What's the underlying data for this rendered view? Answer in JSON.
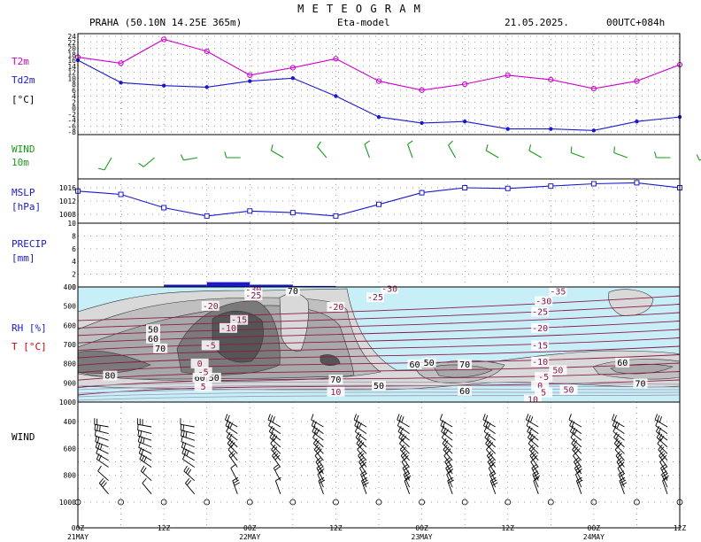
{
  "header": {
    "title": "M E T E O G R A M",
    "location": "PRAHA (50.10N 14.25E  365m)",
    "model": "Eta-model",
    "date": "21.05.2025.",
    "run": "00UTC+084h"
  },
  "colors": {
    "t2m": "#cc00cc",
    "td2m": "#1a1acc",
    "wind10m": "#1a9a1a",
    "mslp": "#1a1acc",
    "precip": "#1a1acc",
    "rh_light": "#c8eef8",
    "rh_50": "#d9d9d9",
    "rh_60": "#c0c0c0",
    "rh_70": "#a8a8a8",
    "rh_80": "#7a7a7a",
    "rh_90": "#555555",
    "temp_contour": "#8a1a4a"
  },
  "labels": {
    "t2m": "T2m",
    "td2m": "Td2m",
    "tunit": "[°C]",
    "wind10_1": "WIND",
    "wind10_2": "10m",
    "mslp_1": "MSLP",
    "mslp_2": "[hPa]",
    "precip_1": "PRECIP",
    "precip_2": "[mm]",
    "rh_1": "RH [%]",
    "rh_2": "T [°C]",
    "wind_profile": "WIND"
  },
  "axes": {
    "time_ticks": [
      "00Z",
      "12Z",
      "00Z",
      "12Z",
      "00Z",
      "12Z",
      "00Z",
      "12Z"
    ],
    "dates": [
      "21MAY",
      "22MAY",
      "23MAY",
      "24MAY"
    ],
    "temp_ticks": [
      "24",
      "22",
      "20",
      "18",
      "16",
      "14",
      "12",
      "10",
      "8",
      "6",
      "4",
      "2",
      "0",
      "-2",
      "-4",
      "-6",
      "-8"
    ],
    "mslp_ticks": [
      "1016",
      "1012",
      "1008"
    ],
    "precip_ticks": [
      "10",
      "8",
      "6",
      "4",
      "2",
      "0"
    ],
    "pressure_ticks": [
      "400",
      "500",
      "600",
      "700",
      "800",
      "900",
      "1000"
    ],
    "profile_ticks": [
      "400",
      "600",
      "800",
      "1000"
    ]
  },
  "chart_data": [
    {
      "type": "line",
      "panel": "temperature",
      "x_hours": [
        0,
        6,
        12,
        18,
        24,
        30,
        36,
        42,
        48,
        54,
        60,
        66,
        72,
        78,
        84
      ],
      "ylim": [
        -8,
        24
      ],
      "series": [
        {
          "name": "T2m",
          "values": [
            17,
            15,
            23,
            19,
            11,
            13.5,
            16.5,
            9,
            6,
            8,
            11,
            9.5,
            6.5,
            9,
            14.5
          ]
        },
        {
          "name": "Td2m",
          "values": [
            16,
            8.5,
            7.5,
            7,
            9,
            10,
            4,
            -3,
            -5,
            -4.5,
            -7,
            -7,
            -7.5,
            -4.5,
            -3
          ]
        }
      ]
    },
    {
      "type": "line",
      "panel": "mslp",
      "x_hours": [
        0,
        6,
        12,
        18,
        24,
        30,
        36,
        42,
        48,
        54,
        60,
        66,
        72,
        78,
        84
      ],
      "ylim": [
        1004,
        1018
      ],
      "series": [
        {
          "name": "MSLP",
          "values": [
            1015,
            1014,
            1010,
            1007.5,
            1009,
            1008.5,
            1007.5,
            1011,
            1014.5,
            1016,
            1015.8,
            1016.5,
            1017.2,
            1017.5,
            1016
          ]
        }
      ]
    },
    {
      "type": "bar",
      "panel": "precip",
      "ylim": [
        0,
        10
      ],
      "x_hours": [
        15,
        21,
        27,
        33
      ],
      "values": [
        0.35,
        0.75,
        0.35,
        0.15
      ]
    },
    {
      "type": "heatmap",
      "panel": "rh_temperature_cross_section",
      "ylim_hpa": [
        1000,
        400
      ],
      "rh_labels": [
        {
          "text": "70",
          "hour": 30,
          "hpa": 438
        },
        {
          "text": "50",
          "hour": 10.5,
          "hpa": 637
        },
        {
          "text": "60",
          "hour": 10.5,
          "hpa": 685
        },
        {
          "text": "70",
          "hour": 11.5,
          "hpa": 736
        },
        {
          "text": "80",
          "hour": 4.5,
          "hpa": 878
        },
        {
          "text": "60",
          "hour": 17,
          "hpa": 889
        },
        {
          "text": "50",
          "hour": 19,
          "hpa": 889
        },
        {
          "text": "70",
          "hour": 36,
          "hpa": 899
        },
        {
          "text": "50",
          "hour": 42,
          "hpa": 931
        },
        {
          "text": "60",
          "hour": 47,
          "hpa": 819
        },
        {
          "text": "50",
          "hour": 49,
          "hpa": 810
        },
        {
          "text": "70",
          "hour": 54,
          "hpa": 819
        },
        {
          "text": "60",
          "hour": 54,
          "hpa": 958
        },
        {
          "text": "60",
          "hour": 76,
          "hpa": 810
        },
        {
          "text": "70",
          "hour": 78.5,
          "hpa": 919
        }
      ],
      "temp_labels": [
        {
          "text": "-30",
          "hour": 24.5,
          "hpa": 430
        },
        {
          "text": "-25",
          "hour": 24.5,
          "hpa": 460
        },
        {
          "text": "-20",
          "hour": 18.5,
          "hpa": 515
        },
        {
          "text": "-15",
          "hour": 22.5,
          "hpa": 588
        },
        {
          "text": "-10",
          "hour": 21,
          "hpa": 630
        },
        {
          "text": "-5",
          "hour": 18.5,
          "hpa": 720
        },
        {
          "text": "0",
          "hour": 17,
          "hpa": 815
        },
        {
          "text": "-5",
          "hour": 17.5,
          "hpa": 860
        },
        {
          "text": "5",
          "hour": 17.5,
          "hpa": 935
        },
        {
          "text": "-20",
          "hour": 36,
          "hpa": 520
        },
        {
          "text": "-30",
          "hour": 43.5,
          "hpa": 426
        },
        {
          "text": "-25",
          "hour": 41.5,
          "hpa": 470
        },
        {
          "text": "-35",
          "hour": 67,
          "hpa": 440
        },
        {
          "text": "-30",
          "hour": 65,
          "hpa": 490
        },
        {
          "text": "-25",
          "hour": 64.5,
          "hpa": 545
        },
        {
          "text": "-20",
          "hour": 64.5,
          "hpa": 630
        },
        {
          "text": "-15",
          "hour": 64.5,
          "hpa": 720
        },
        {
          "text": "-10",
          "hour": 64.5,
          "hpa": 805
        },
        {
          "text": "-5",
          "hour": 65,
          "hpa": 885
        },
        {
          "text": "0",
          "hour": 64.5,
          "hpa": 930
        },
        {
          "text": "5",
          "hour": 65,
          "hpa": 966
        },
        {
          "text": "10",
          "hour": 36,
          "hpa": 962
        },
        {
          "text": "50",
          "hour": 67,
          "hpa": 850
        },
        {
          "text": "50",
          "hour": 68.5,
          "hpa": 952
        },
        {
          "text": "10",
          "hour": 63.5,
          "hpa": 1003
        }
      ]
    },
    {
      "type": "scatter",
      "panel": "wind_profile",
      "x_hours": [
        0,
        6,
        12,
        18,
        24,
        30,
        36,
        42,
        48,
        54,
        60,
        66,
        72,
        78,
        84
      ],
      "ylim_hpa": [
        1050,
        300
      ]
    }
  ]
}
